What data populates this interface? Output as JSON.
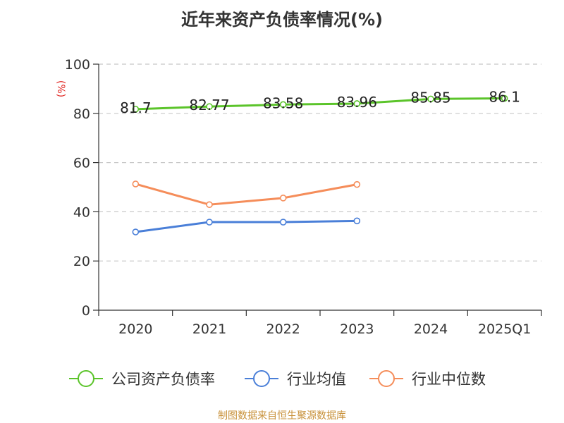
{
  "title": "近年来资产负债率情况(%)",
  "source": "制图数据来自恒生聚源数据库",
  "chart_data": {
    "type": "line",
    "categories": [
      "2020",
      "2021",
      "2022",
      "2023",
      "2024",
      "2025Q1"
    ],
    "ylabel": "(%)",
    "ylim": [
      0,
      100
    ],
    "yticks": [
      0,
      20,
      40,
      60,
      80,
      100
    ],
    "grid": "horizontal-dashed",
    "legend": "bottom",
    "series": [
      {
        "name": "公司资产负债率",
        "color": "#5bc42a",
        "values": [
          81.7,
          82.77,
          83.58,
          83.96,
          85.85,
          86.1
        ],
        "labels": true
      },
      {
        "name": "行业均值",
        "color": "#4a7fd8",
        "values": [
          31.8,
          35.8,
          35.8,
          36.3,
          null,
          null
        ],
        "labels": false
      },
      {
        "name": "行业中位数",
        "color": "#f58d5a",
        "values": [
          51.3,
          42.9,
          45.6,
          51.1,
          null,
          null
        ],
        "labels": false
      }
    ]
  }
}
